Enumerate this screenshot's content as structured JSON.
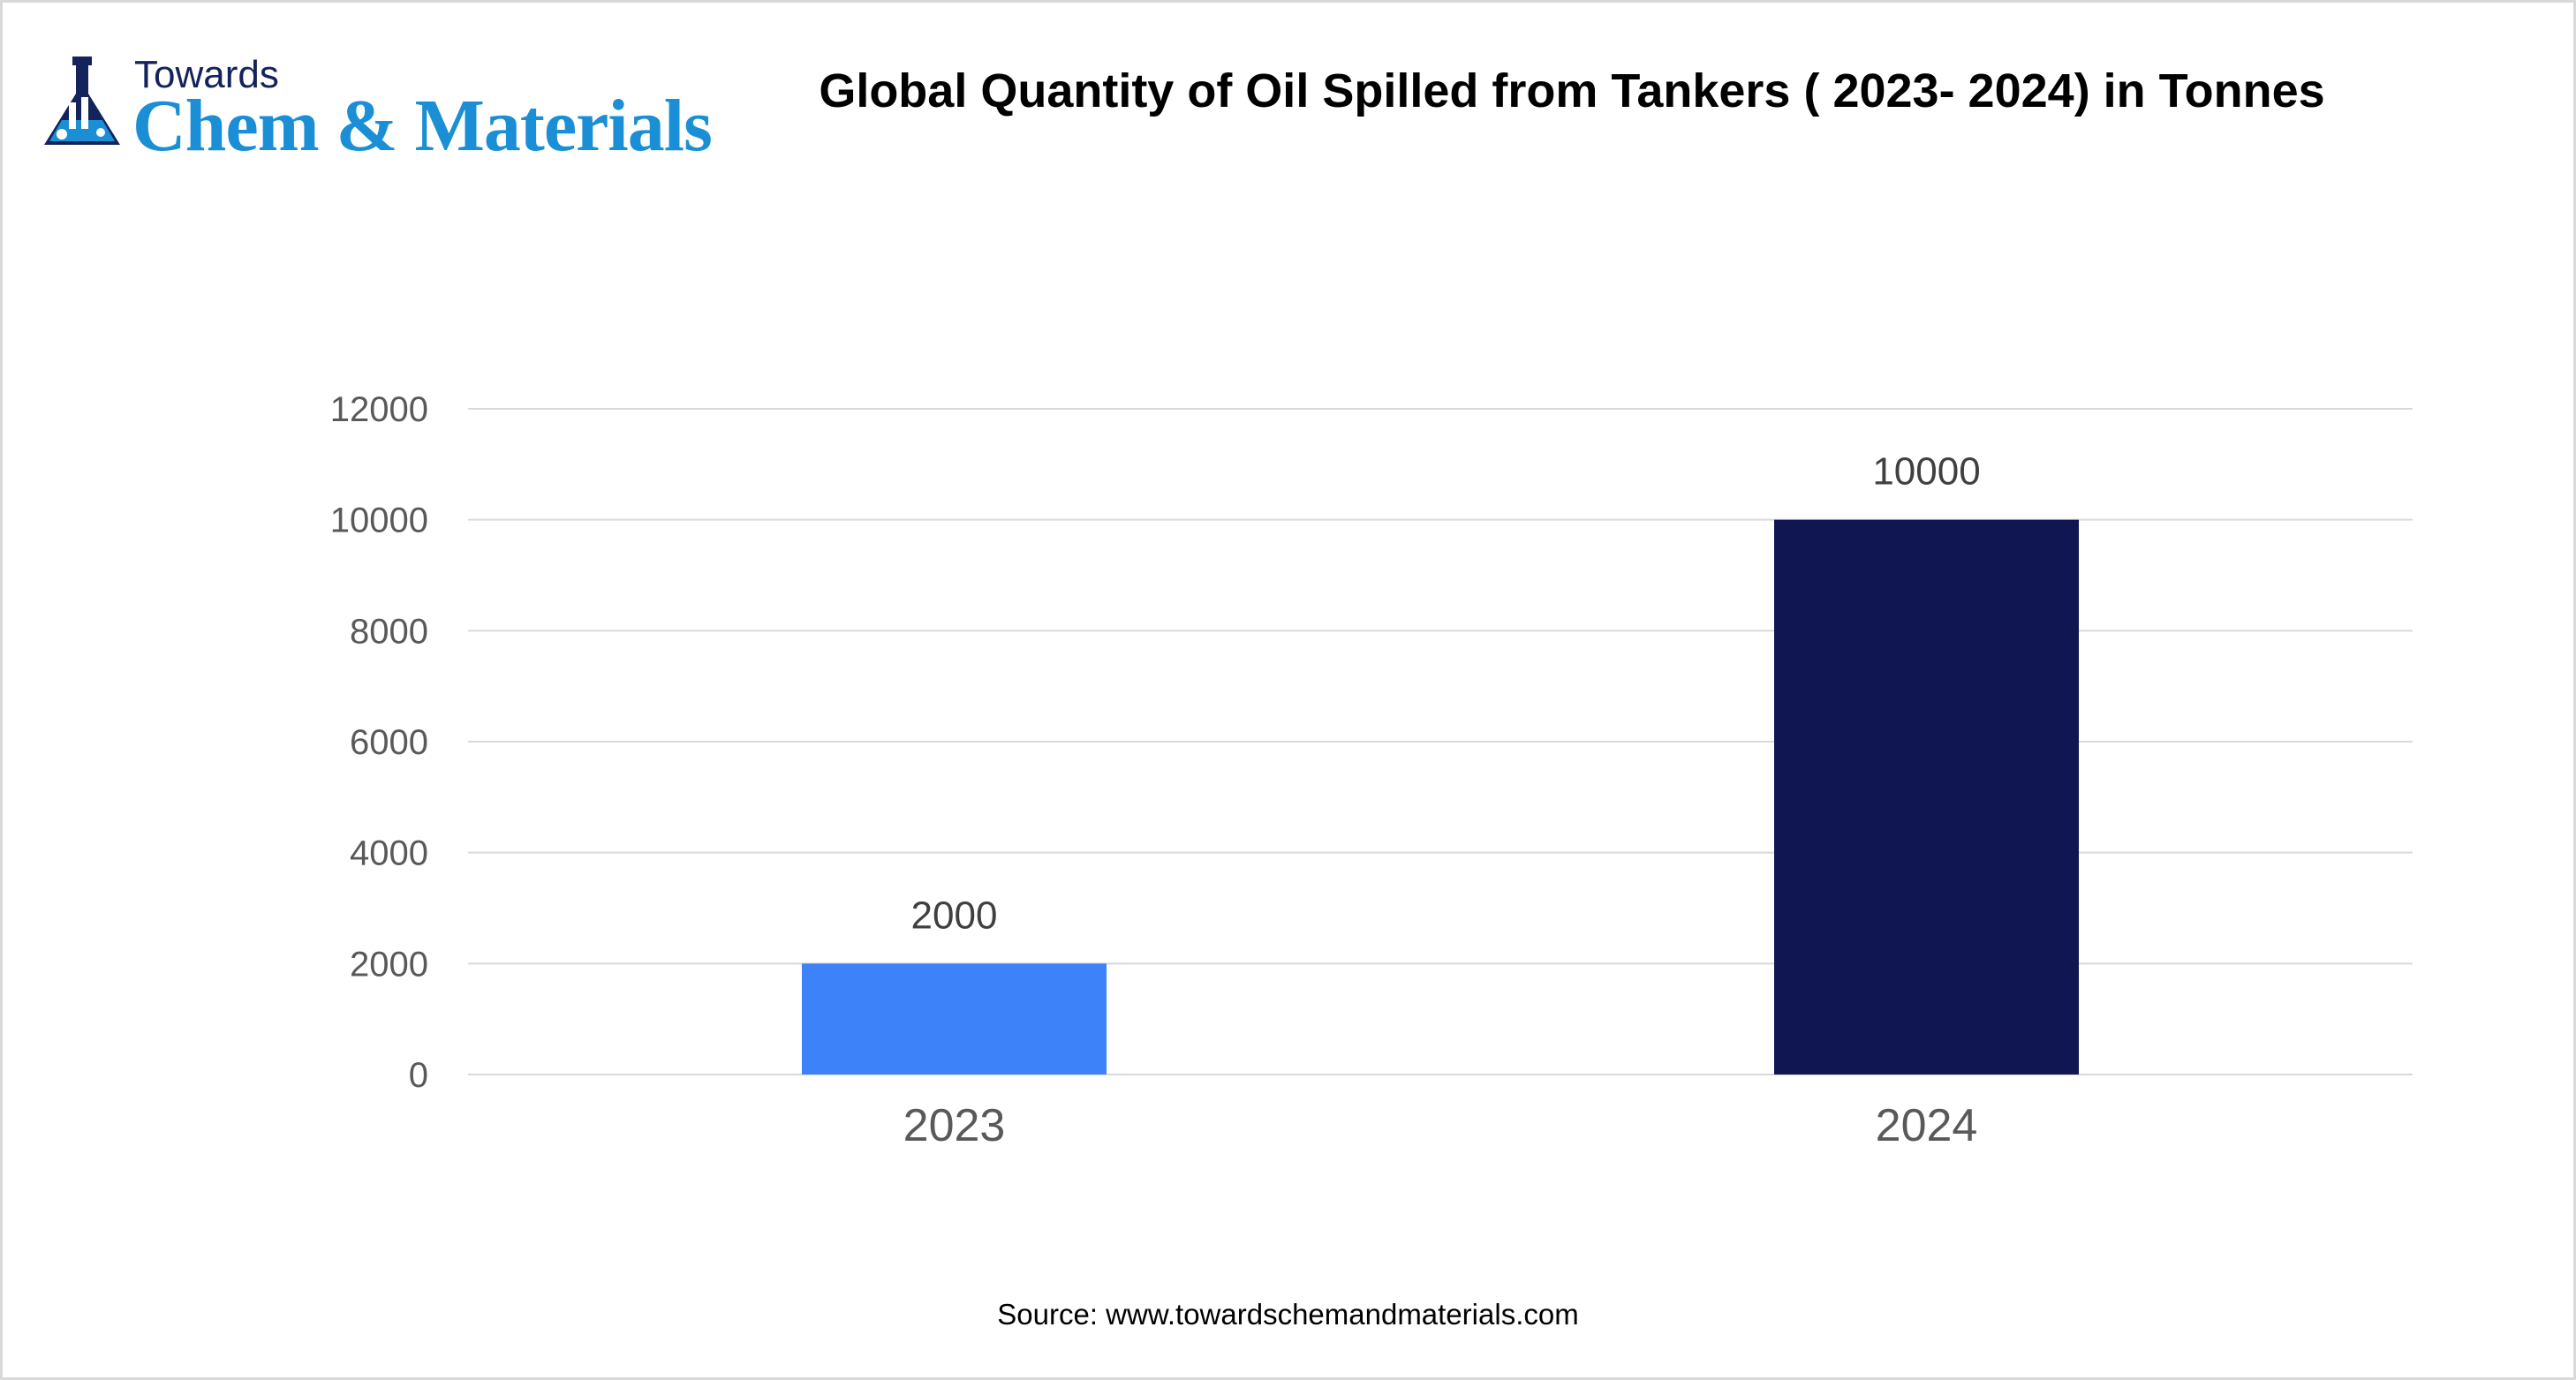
{
  "logo": {
    "line1": "Towards",
    "line2": "Chem & Materials"
  },
  "source_text": "Source: www.towardschemandmaterials.com",
  "colors": {
    "bar_2023": "#3d82f9",
    "bar_2024": "#0f1651",
    "gridline": "#d9d9d9",
    "axis_text": "#595959",
    "label_text": "#404040"
  },
  "chart_data": {
    "type": "bar",
    "title": "Global Quantity of Oil Spilled from Tankers ( 2023- 2024) in Tonnes",
    "categories": [
      "2023",
      "2024"
    ],
    "values": [
      2000,
      10000
    ],
    "data_labels": [
      "2000",
      "10000"
    ],
    "yticks": [
      0,
      2000,
      4000,
      6000,
      8000,
      10000,
      12000
    ],
    "ytick_labels": [
      "0",
      "2000",
      "4000",
      "6000",
      "8000",
      "10000",
      "12000"
    ],
    "ylim": [
      0,
      12000
    ],
    "xlabel": "",
    "ylabel": "",
    "grid": true,
    "legend": "none"
  }
}
